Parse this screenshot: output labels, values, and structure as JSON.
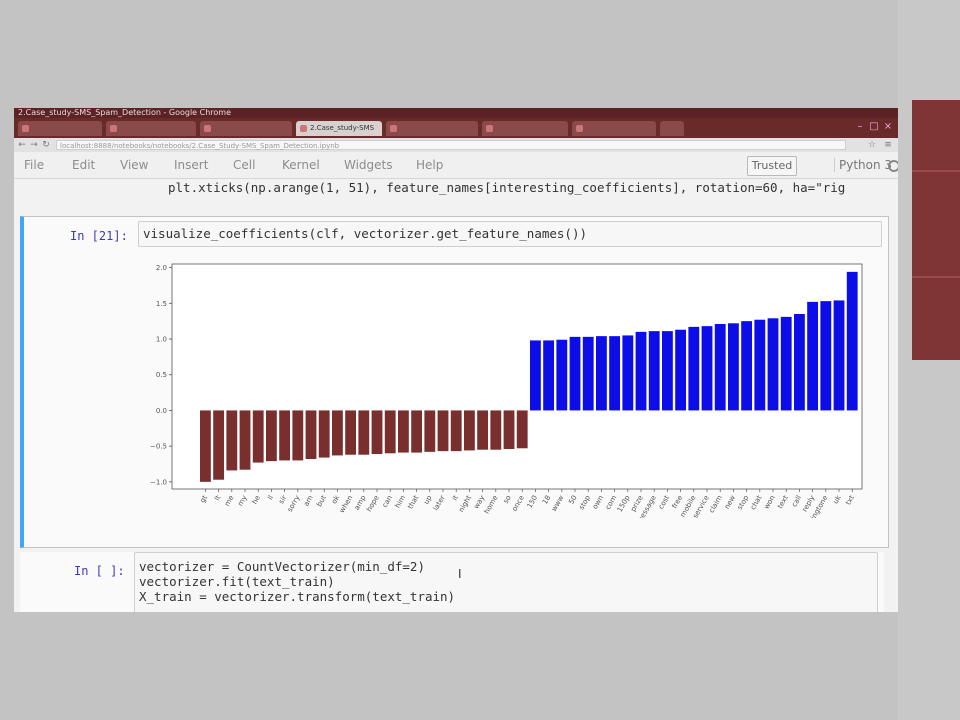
{
  "browser": {
    "window_title": "2.Case_study-SMS_Spam_Detection - Google Chrome",
    "tabs": [
      "",
      "",
      "",
      "2.Case_study-SMS",
      "",
      "",
      "",
      ""
    ],
    "active_tab": 3,
    "url": "localhost:8888/notebooks/notebooks/2.Case_Study-SMS_Spam_Detection.ipynb"
  },
  "menubar": {
    "items": [
      "File",
      "Edit",
      "View",
      "Insert",
      "Cell",
      "Kernel",
      "Widgets",
      "Help"
    ],
    "trusted": "Trusted",
    "kernel": "Python 3"
  },
  "cells": {
    "top_code_line": "plt.xticks(np.arange(1, 51), feature_names[interesting_coefficients], rotation=60, ha=\"rig",
    "cell21": {
      "prompt": "In [21]:",
      "code": "visualize_coefficients(clf, vectorizer.get_feature_names())"
    },
    "cell_next": {
      "prompt": "In [ ]:",
      "code_lines": [
        "vectorizer = CountVectorizer(min_df=2)",
        "vectorizer.fit(text_train)",
        "",
        "X_train = vectorizer.transform(text_train)"
      ]
    }
  },
  "colors": {
    "negative_bar": "#7a2f2f",
    "positive_bar": "#0d0de8",
    "cell_selected_border": "#42a5f5",
    "browser_chrome": "#6a2a2a"
  },
  "chart_data": {
    "type": "bar",
    "title": "",
    "xlabel": "",
    "ylabel": "",
    "ylim": [
      -1.1,
      2.05
    ],
    "yticks": [
      -1.0,
      -0.5,
      0.0,
      0.5,
      1.0,
      1.5,
      2.0
    ],
    "ytick_labels": [
      "−1.0",
      "−0.5",
      "0.0",
      "0.5",
      "1.0",
      "1.5",
      "2.0"
    ],
    "grid": false,
    "categories": [
      "gt",
      "lt",
      "me",
      "my",
      "he",
      "ll",
      "sir",
      "sorry",
      "am",
      "but",
      "ok",
      "when",
      "amp",
      "hope",
      "can",
      "him",
      "that",
      "up",
      "later",
      "it",
      "night",
      "way",
      "home",
      "so",
      "once",
      "150",
      "18",
      "www",
      "50",
      "stop",
      "own",
      "com",
      "150p",
      "prize",
      "message",
      "cost",
      "free",
      "mobile",
      "service",
      "claim",
      "new",
      "stop",
      "chat",
      "won",
      "text",
      "call",
      "reply",
      "ringtone",
      "uk",
      "txt"
    ],
    "values": [
      -1.0,
      -0.97,
      -0.84,
      -0.83,
      -0.73,
      -0.71,
      -0.7,
      -0.7,
      -0.68,
      -0.66,
      -0.63,
      -0.62,
      -0.62,
      -0.61,
      -0.6,
      -0.59,
      -0.59,
      -0.58,
      -0.57,
      -0.57,
      -0.56,
      -0.55,
      -0.55,
      -0.54,
      -0.53,
      0.98,
      0.98,
      0.99,
      1.03,
      1.03,
      1.04,
      1.04,
      1.05,
      1.1,
      1.11,
      1.11,
      1.13,
      1.17,
      1.18,
      1.21,
      1.22,
      1.25,
      1.27,
      1.29,
      1.31,
      1.35,
      1.52,
      1.53,
      1.54,
      1.94
    ]
  }
}
